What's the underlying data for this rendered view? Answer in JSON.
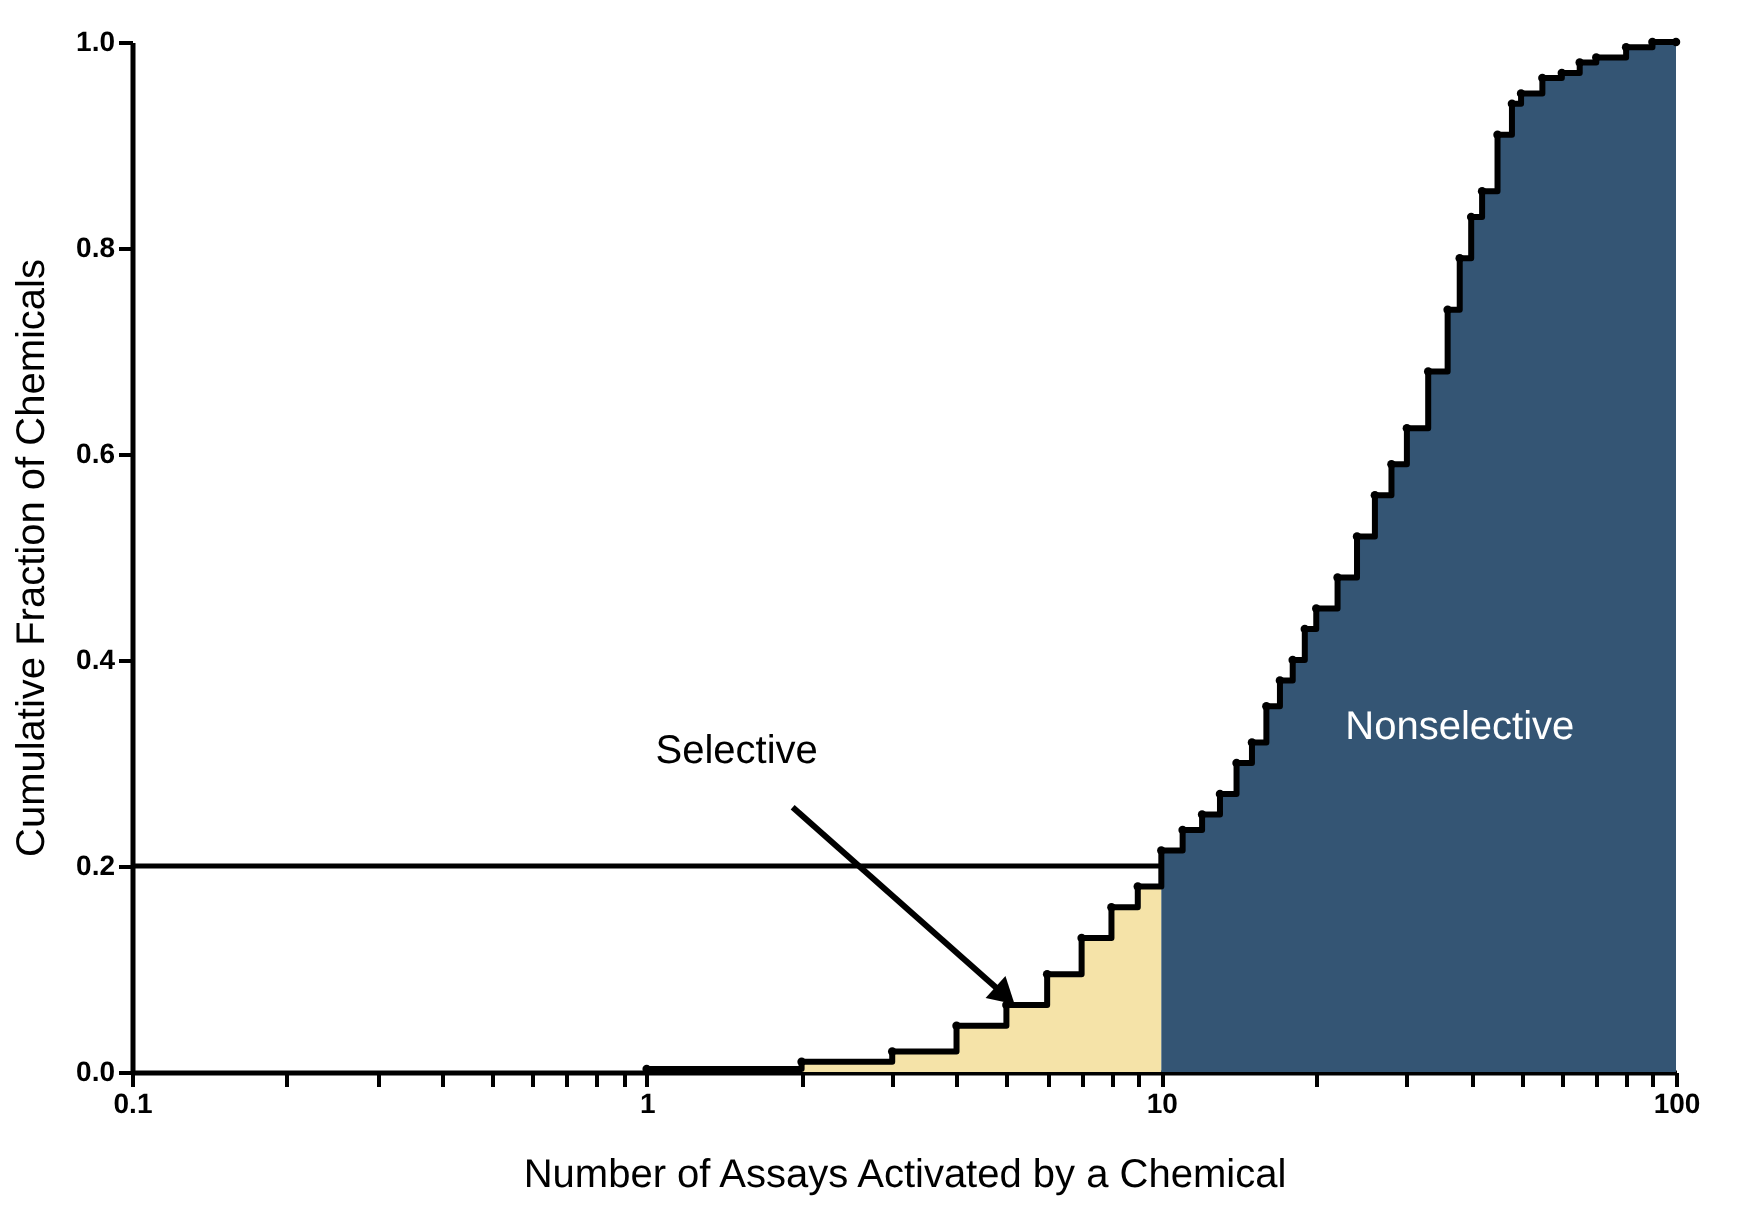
{
  "chart_data": {
    "type": "area",
    "xlabel": "Number of Assays Activated by a Chemical",
    "ylabel": "Cumulative Fraction of Chemicals",
    "log": "x",
    "xlim": [
      0.1,
      100
    ],
    "xticks": [
      0.1,
      {
        "value": 0.2,
        "label": null
      },
      {
        "value": 0.3,
        "label": null
      },
      {
        "value": 0.4,
        "label": null
      },
      {
        "value": 0.5,
        "label": null
      },
      {
        "value": 0.6,
        "label": null
      },
      {
        "value": 0.7,
        "label": null
      },
      {
        "value": 0.8,
        "label": null
      },
      {
        "value": 0.9,
        "label": null
      },
      1,
      {
        "value": 2,
        "label": null
      },
      {
        "value": 3,
        "label": null
      },
      {
        "value": 4,
        "label": null
      },
      {
        "value": 5,
        "label": null
      },
      {
        "value": 6,
        "label": null
      },
      {
        "value": 7,
        "label": null
      },
      {
        "value": 8,
        "label": null
      },
      {
        "value": 9,
        "label": null
      },
      10,
      {
        "value": 20,
        "label": null
      },
      {
        "value": 30,
        "label": null
      },
      {
        "value": 40,
        "label": null
      },
      {
        "value": 50,
        "label": null
      },
      {
        "value": 60,
        "label": null
      },
      {
        "value": 70,
        "label": null
      },
      {
        "value": 80,
        "label": null
      },
      {
        "value": 90,
        "label": null
      },
      100
    ],
    "ylim": [
      0,
      1
    ],
    "yticks": [
      {
        "value": 0,
        "label": "0.0"
      },
      0.2,
      0.4,
      0.6,
      0.8,
      {
        "value": 1,
        "label": "1.0"
      }
    ],
    "grid": false,
    "series": [
      {
        "color": "#f5e3a8",
        "x": [
          1,
          2,
          3,
          4,
          5,
          6,
          7,
          8,
          9,
          10
        ],
        "values": [
          0.003,
          0.01,
          0.02,
          0.045,
          0.065,
          0.095,
          0.13,
          0.16,
          0.18,
          0.215
        ]
      },
      {
        "color": "#345574",
        "x": [
          10,
          11,
          12,
          13,
          14,
          15,
          16,
          17,
          18,
          19,
          20,
          22,
          24,
          26,
          28,
          30,
          33,
          36,
          38,
          40,
          42,
          45,
          48,
          50,
          55,
          60,
          65,
          70,
          80,
          90,
          100
        ],
        "values": [
          0.215,
          0.235,
          0.25,
          0.27,
          0.3,
          0.32,
          0.355,
          0.38,
          0.4,
          0.43,
          0.45,
          0.48,
          0.52,
          0.56,
          0.59,
          0.625,
          0.68,
          0.74,
          0.79,
          0.83,
          0.855,
          0.91,
          0.94,
          0.95,
          0.965,
          0.97,
          0.98,
          0.985,
          0.995,
          1.0,
          1.0
        ]
      },
      {
        "type": "step",
        "color": "#000000",
        "marker": "circle",
        "x": [
          1,
          2,
          3,
          4,
          5,
          6,
          7,
          8,
          9,
          10,
          11,
          12,
          13,
          14,
          15,
          16,
          17,
          18,
          19,
          20,
          22,
          24,
          26,
          28,
          30,
          33,
          36,
          38,
          40,
          42,
          45,
          48,
          50,
          55,
          60,
          65,
          70,
          80,
          90,
          100
        ],
        "values": [
          0.003,
          0.01,
          0.02,
          0.045,
          0.065,
          0.095,
          0.13,
          0.16,
          0.18,
          0.215,
          0.235,
          0.25,
          0.27,
          0.3,
          0.32,
          0.355,
          0.38,
          0.4,
          0.43,
          0.45,
          0.48,
          0.52,
          0.56,
          0.59,
          0.625,
          0.68,
          0.74,
          0.79,
          0.83,
          0.855,
          0.91,
          0.94,
          0.95,
          0.965,
          0.97,
          0.98,
          0.985,
          0.995,
          1.0,
          1.0
        ]
      }
    ],
    "ref_lines": [
      {
        "axis": "y",
        "value": 0.2,
        "color": "#000000"
      }
    ],
    "annotations": [
      {
        "text": "Selective",
        "x": 4.9,
        "y": 0.077
      },
      "Nonselective"
    ]
  }
}
